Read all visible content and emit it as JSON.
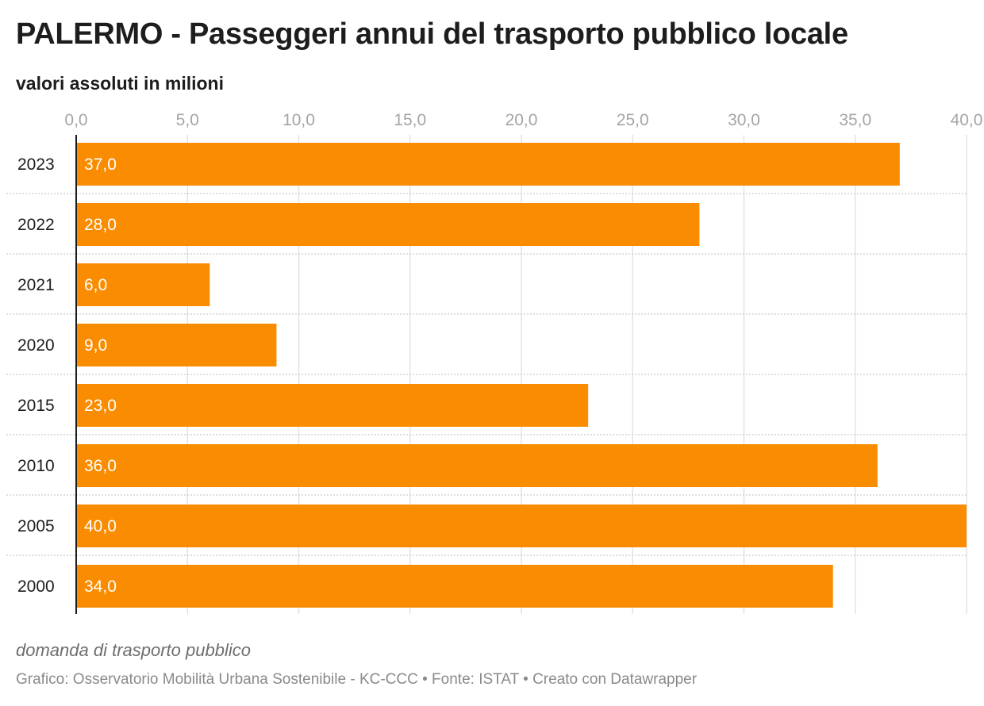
{
  "chart_data": {
    "type": "bar",
    "orientation": "horizontal",
    "title": "PALERMO - Passeggeri annui del trasporto pubblico locale",
    "subtitle": "valori assoluti in milioni",
    "categories": [
      "2023",
      "2022",
      "2021",
      "2020",
      "2015",
      "2010",
      "2005",
      "2000"
    ],
    "values": [
      37.0,
      28.0,
      6.0,
      9.0,
      23.0,
      36.0,
      40.0,
      34.0
    ],
    "value_labels": [
      "37,0",
      "28,0",
      "6,0",
      "9,0",
      "23,0",
      "36,0",
      "40,0",
      "34,0"
    ],
    "xticks": [
      0,
      5,
      10,
      15,
      20,
      25,
      30,
      35,
      40
    ],
    "xtick_labels": [
      "0,0",
      "5,0",
      "10,0",
      "15,0",
      "20,0",
      "25,0",
      "30,0",
      "35,0",
      "40,0"
    ],
    "xlim": [
      0,
      40
    ],
    "grid": true,
    "bar_color": "#f98c00",
    "xlabel": "",
    "ylabel": ""
  },
  "footer": {
    "note": "domanda di trasporto pubblico",
    "credits": "Grafico: Osservatorio Mobilità Urbana Sostenibile - KC-CCC • Fonte: ISTAT • Creato con Datawrapper"
  }
}
